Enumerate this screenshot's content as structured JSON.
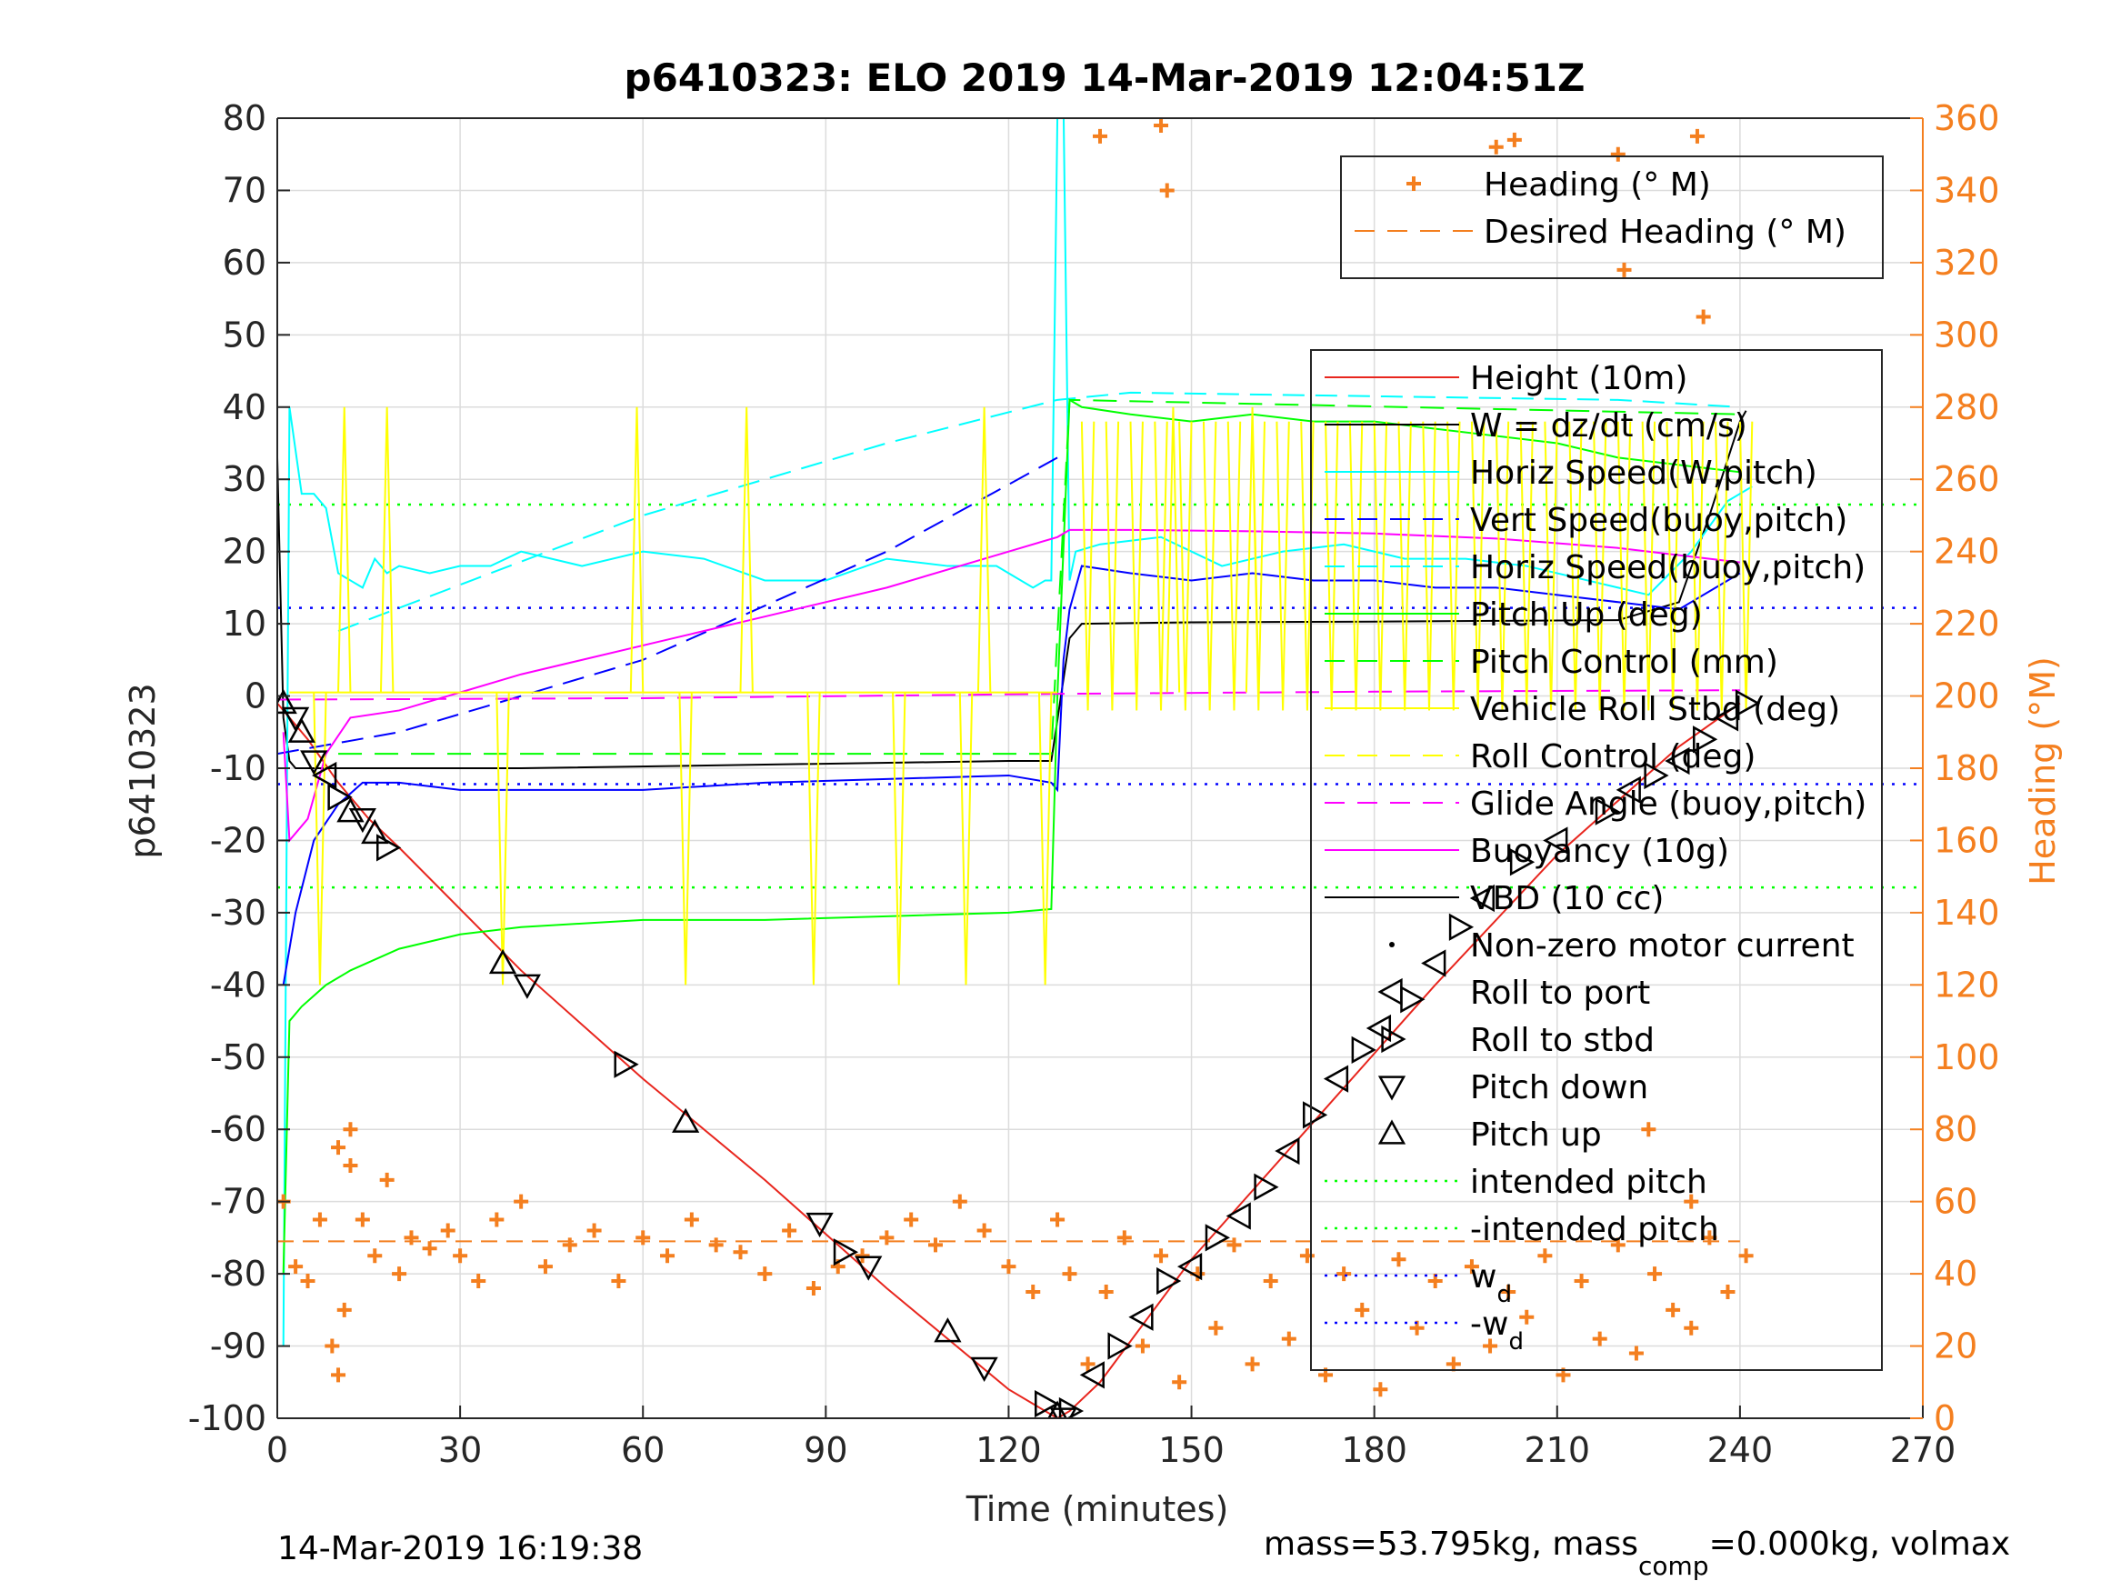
{
  "chart_data": {
    "type": "line",
    "title": "p6410323: ELO 2019 14-Mar-2019 12:04:51Z",
    "xlabel": "Time (minutes)",
    "ylabel": "p6410323",
    "y2label": "Heading (°M)",
    "xlim": [
      0,
      270
    ],
    "ylim": [
      -100,
      80
    ],
    "y2lim": [
      0,
      360
    ],
    "xticks": [
      "0",
      "30",
      "60",
      "90",
      "120",
      "150",
      "180",
      "210",
      "240",
      "270"
    ],
    "yticks": [
      "80",
      "70",
      "60",
      "50",
      "40",
      "30",
      "20",
      "10",
      "0",
      "-10",
      "-20",
      "-30",
      "-40",
      "-50",
      "-60",
      "-70",
      "-80",
      "-90",
      "-100"
    ],
    "y2ticks": [
      "360",
      "340",
      "320",
      "300",
      "280",
      "260",
      "240",
      "220",
      "200",
      "180",
      "160",
      "140",
      "120",
      "100",
      "80",
      "60",
      "40",
      "20",
      "0"
    ],
    "grid": true,
    "footer_left": "14-Mar-2019 16:19:38",
    "footer_right": {
      "main": "mass=53.795kg, mass",
      "sub": "comp",
      "rest": "=0.000kg, volmax"
    },
    "legend_heading": [
      {
        "label": "Heading (° M)",
        "style": "marker-plus",
        "color": "#f47f1f"
      },
      {
        "label": "Desired Heading (° M)",
        "style": "dash",
        "color": "#f47f1f"
      }
    ],
    "legend_main": [
      {
        "label": "Height (10m)",
        "style": "solid",
        "color": "#e8261e"
      },
      {
        "label": "W = dz/dt (cm/s)",
        "style": "solid",
        "color": "#000000"
      },
      {
        "label": "Horiz Speed(W,pitch)",
        "style": "solid",
        "color": "#00ffff"
      },
      {
        "label": "Vert Speed(buoy,pitch)",
        "style": "dash",
        "color": "#0000ff"
      },
      {
        "label": "Horiz Speed(buoy,pitch)",
        "style": "dash",
        "color": "#00ffff"
      },
      {
        "label": "Pitch Up (deg)",
        "style": "solid",
        "color": "#00ff00"
      },
      {
        "label": "Pitch Control (mm)",
        "style": "dash",
        "color": "#00ff00"
      },
      {
        "label": "Vehicle Roll Stbd (deg)",
        "style": "solid",
        "color": "#ffff00"
      },
      {
        "label": "Roll Control (deg)",
        "style": "dash",
        "color": "#ffff00"
      },
      {
        "label": "Glide Angle (buoy,pitch)",
        "style": "dash",
        "color": "#ff00ff"
      },
      {
        "label": "Buoyancy (10g)",
        "style": "solid",
        "color": "#ff00ff"
      },
      {
        "label": "VBD (10 cc)",
        "style": "solid",
        "color": "#000000"
      },
      {
        "label": "Non-zero motor current",
        "style": "dot",
        "color": "#000000"
      },
      {
        "label": "Roll to port",
        "style": "tri-left",
        "color": "#000000"
      },
      {
        "label": "Roll to stbd",
        "style": "tri-right",
        "color": "#000000"
      },
      {
        "label": "Pitch down",
        "style": "tri-down",
        "color": "#000000"
      },
      {
        "label": "Pitch up",
        "style": "tri-up",
        "color": "#000000"
      },
      {
        "label": "intended pitch",
        "style": "dotted",
        "color": "#00ff00"
      },
      {
        "label": "-intended pitch",
        "style": "dotted",
        "color": "#00ff00"
      },
      {
        "label": "w",
        "sub": "d",
        "style": "dotted",
        "color": "#0000ff"
      },
      {
        "label": "-w",
        "sub": "d",
        "style": "dotted",
        "color": "#0000ff"
      }
    ],
    "reference_lines": [
      {
        "name": "intended pitch",
        "y": 26.5,
        "color": "#00ff00",
        "style": "dotted"
      },
      {
        "name": "-intended pitch",
        "y": -26.5,
        "color": "#00ff00",
        "style": "dotted"
      },
      {
        "name": "w_d",
        "y": 12.2,
        "color": "#0000ff",
        "style": "dotted"
      },
      {
        "name": "-w_d",
        "y": -12.2,
        "color": "#0000ff",
        "style": "dotted"
      }
    ],
    "series": [
      {
        "name": "Height (10m)",
        "axis": "left",
        "color": "#e8261e",
        "dash": "",
        "x": [
          0,
          2,
          5,
          10,
          15,
          20,
          40,
          60,
          80,
          100,
          120,
          128,
          130,
          135,
          150,
          170,
          190,
          210,
          230,
          240
        ],
        "y": [
          -1,
          -3,
          -6,
          -12,
          -17,
          -21,
          -38,
          -53,
          -67,
          -82,
          -96,
          -100,
          -99,
          -95,
          -78,
          -59,
          -40,
          -22,
          -7,
          -1
        ]
      },
      {
        "name": "W = dz/dt (cm/s)",
        "axis": "left",
        "color": "#000000",
        "dash": "",
        "x": [
          0,
          1,
          2,
          3,
          6,
          15,
          40,
          80,
          120,
          127,
          130,
          132,
          150,
          180,
          200,
          220,
          230,
          235,
          240,
          241
        ],
        "y": [
          33,
          -3,
          -9,
          -10,
          -10,
          -10,
          -10,
          -9.5,
          -9,
          -9,
          8,
          10,
          10.2,
          10.3,
          10.4,
          10.5,
          13,
          25,
          38,
          39.5
        ]
      },
      {
        "name": "Horiz Speed(W,pitch)",
        "axis": "left",
        "color": "#00ffff",
        "dash": "",
        "x": [
          1,
          2,
          4,
          6,
          8,
          10,
          12,
          14,
          16,
          18,
          20,
          25,
          30,
          35,
          40,
          50,
          60,
          70,
          80,
          90,
          100,
          110,
          118,
          124,
          126,
          127,
          128,
          129,
          130,
          131,
          135,
          145,
          155,
          165,
          175,
          185,
          195,
          205,
          215,
          225,
          232,
          238,
          242
        ],
        "y": [
          -90,
          40,
          28,
          28,
          26,
          17,
          16,
          15,
          19,
          17,
          18,
          17,
          18,
          18,
          20,
          18,
          20,
          19,
          16,
          16,
          19,
          18,
          18,
          15,
          16,
          16,
          80,
          82,
          16,
          20,
          21,
          22,
          18,
          20,
          21,
          19,
          19,
          18,
          16,
          14,
          20,
          27,
          29
        ]
      },
      {
        "name": "Vert Speed(buoy,pitch)",
        "axis": "left",
        "color": "#0000ff",
        "dash": "24 12",
        "x": [
          0,
          20,
          60,
          100,
          128
        ],
        "y": [
          -8,
          -5,
          5,
          20,
          33
        ]
      },
      {
        "name": "Horiz Speed(buoy,pitch)",
        "axis": "left",
        "color": "#00ffff",
        "dash": "24 12",
        "x": [
          10,
          60,
          100,
          128,
          140,
          180,
          220,
          240
        ],
        "y": [
          9,
          25,
          35,
          41,
          42,
          41.5,
          41,
          40
        ]
      },
      {
        "name": "Vert Speed(buoy,pitch) trace",
        "axis": "left",
        "color": "#0000ff",
        "dash": "",
        "x": [
          1,
          3,
          6,
          10,
          14,
          20,
          30,
          40,
          60,
          80,
          100,
          120,
          127,
          128,
          129,
          130,
          132,
          140,
          150,
          160,
          170,
          180,
          190,
          200,
          210,
          220,
          230,
          240
        ],
        "y": [
          -40,
          -30,
          -20,
          -15,
          -12,
          -12,
          -13,
          -13,
          -13,
          -12,
          -11.5,
          -11,
          -12,
          -13,
          5,
          12,
          18,
          17,
          16,
          17,
          16,
          16,
          15,
          15,
          14,
          13,
          12,
          17
        ]
      },
      {
        "name": "Pitch Up (deg)",
        "axis": "left",
        "color": "#00ff00",
        "dash": "",
        "x": [
          1,
          2,
          4,
          8,
          12,
          20,
          30,
          40,
          60,
          80,
          100,
          120,
          127,
          128,
          130,
          132,
          140,
          150,
          160,
          170,
          180,
          190,
          200,
          210,
          220,
          230,
          240
        ],
        "y": [
          -80,
          -45,
          -43,
          -40,
          -38,
          -35,
          -33,
          -32,
          -31,
          -31,
          -30.5,
          -30,
          -29.5,
          0,
          41,
          40,
          39,
          38,
          39,
          38,
          38,
          37,
          36,
          35,
          33,
          32,
          31
        ]
      },
      {
        "name": "Pitch Control (mm)",
        "axis": "left",
        "color": "#00ff00",
        "dash": "26 14",
        "x": [
          10,
          60,
          100,
          127,
          130,
          240
        ],
        "y": [
          -8,
          -8,
          -8,
          -8,
          41,
          39
        ]
      },
      {
        "name": "Glide Angle (buoy,pitch)",
        "axis": "left",
        "color": "#ff00ff",
        "dash": "26 14",
        "x": [
          0,
          60,
          128,
          180,
          240
        ],
        "y": [
          -0.5,
          -0.3,
          0.3,
          0.6,
          0.8
        ]
      },
      {
        "name": "Buoyancy (10g)",
        "axis": "left",
        "color": "#ff00ff",
        "dash": "",
        "x": [
          1,
          2,
          5,
          8,
          12,
          20,
          40,
          60,
          80,
          100,
          120,
          128,
          130,
          140,
          160,
          180,
          200,
          220,
          235,
          240
        ],
        "y": [
          -5,
          -20,
          -17,
          -8,
          -3,
          -2,
          3,
          7,
          11,
          15,
          20,
          22,
          23,
          23,
          22.8,
          22.5,
          21.8,
          20.5,
          19,
          18.5
        ]
      },
      {
        "name": "Desired Heading (° M)",
        "axis": "right",
        "color": "#f47f1f",
        "dash": "18 10",
        "x": [
          0,
          240
        ],
        "y": [
          49,
          49
        ]
      }
    ],
    "roll_spikes": {
      "name": "Vehicle Roll Stbd (deg)",
      "color": "#ffff00",
      "up": [
        11,
        18,
        59,
        77,
        116,
        147,
        160
      ],
      "down": [
        7,
        37,
        67,
        88,
        102,
        113,
        126
      ],
      "baseline": 0.5,
      "up_to": 40,
      "down_to": -40
    },
    "heading_markers": {
      "name": "Heading (° M)",
      "axis": "right",
      "color": "#f47f1f",
      "x": [
        1,
        3,
        5,
        7,
        9,
        10,
        11,
        12,
        14,
        16,
        18,
        20,
        22,
        25,
        28,
        30,
        33,
        36,
        40,
        44,
        48,
        52,
        56,
        60,
        64,
        68,
        72,
        76,
        80,
        84,
        88,
        92,
        96,
        100,
        104,
        108,
        112,
        116,
        120,
        124,
        128,
        130,
        133,
        136,
        139,
        142,
        145,
        148,
        151,
        154,
        157,
        160,
        163,
        166,
        169,
        172,
        175,
        178,
        181,
        184,
        187,
        190,
        193,
        196,
        199,
        202,
        205,
        208,
        211,
        214,
        217,
        220,
        223,
        226,
        229,
        232,
        235,
        238,
        241,
        135,
        145,
        146,
        200,
        203,
        220,
        221,
        233,
        234,
        10,
        12,
        225,
        232
      ],
      "y": [
        60,
        42,
        38,
        55,
        20,
        12,
        30,
        70,
        55,
        45,
        66,
        40,
        50,
        47,
        52,
        45,
        38,
        55,
        60,
        42,
        48,
        52,
        38,
        50,
        45,
        55,
        48,
        46,
        40,
        52,
        36,
        42,
        45,
        50,
        55,
        48,
        60,
        52,
        42,
        35,
        55,
        40,
        15,
        35,
        50,
        20,
        45,
        10,
        40,
        25,
        48,
        15,
        38,
        22,
        45,
        12,
        40,
        30,
        8,
        44,
        25,
        38,
        15,
        42,
        20,
        35,
        28,
        45,
        12,
        38,
        22,
        48,
        18,
        40,
        30,
        25,
        50,
        35,
        45,
        355,
        358,
        340,
        352,
        354,
        350,
        318,
        355,
        305,
        75,
        80,
        80,
        60
      ]
    },
    "marker_points": {
      "name": "Pitch/Roll markers",
      "color": "#000000",
      "x": [
        1,
        3,
        4,
        6,
        8,
        10,
        12,
        14,
        16,
        18,
        37,
        41,
        57,
        67,
        89,
        93,
        97,
        110,
        116,
        126,
        128,
        129,
        130,
        134,
        138,
        142,
        146,
        150,
        154,
        158,
        162,
        166,
        170,
        174,
        178,
        181,
        186,
        190,
        194,
        198,
        204,
        210,
        218,
        222,
        226,
        230,
        234,
        238,
        241
      ],
      "y": [
        -1,
        -3,
        -5,
        -9,
        -11,
        -14,
        -16,
        -17,
        -19,
        -21,
        -37,
        -40,
        -51,
        -59,
        -73,
        -77,
        -79,
        -88,
        -93,
        -98,
        -99.5,
        -100,
        -99,
        -94,
        -90,
        -86,
        -81,
        -79,
        -75,
        -72,
        -68,
        -63,
        -58,
        -53,
        -49,
        -46,
        -42,
        -37,
        -32,
        -28,
        -23,
        -20,
        -16,
        -13,
        -11,
        -9,
        -6,
        -3,
        -1
      ],
      "symbols": [
        "up",
        "down",
        "up",
        "down",
        "left",
        "right",
        "up",
        "down",
        "up",
        "right",
        "up",
        "down",
        "right",
        "up",
        "down",
        "right",
        "down",
        "up",
        "down",
        "right",
        "up",
        "down",
        "right",
        "left",
        "right",
        "left",
        "right",
        "left",
        "right",
        "left",
        "right",
        "left",
        "right",
        "left",
        "right",
        "left",
        "right",
        "left",
        "right",
        "left",
        "right",
        "left",
        "right",
        "left",
        "right",
        "left",
        "right",
        "left",
        "right"
      ]
    }
  }
}
